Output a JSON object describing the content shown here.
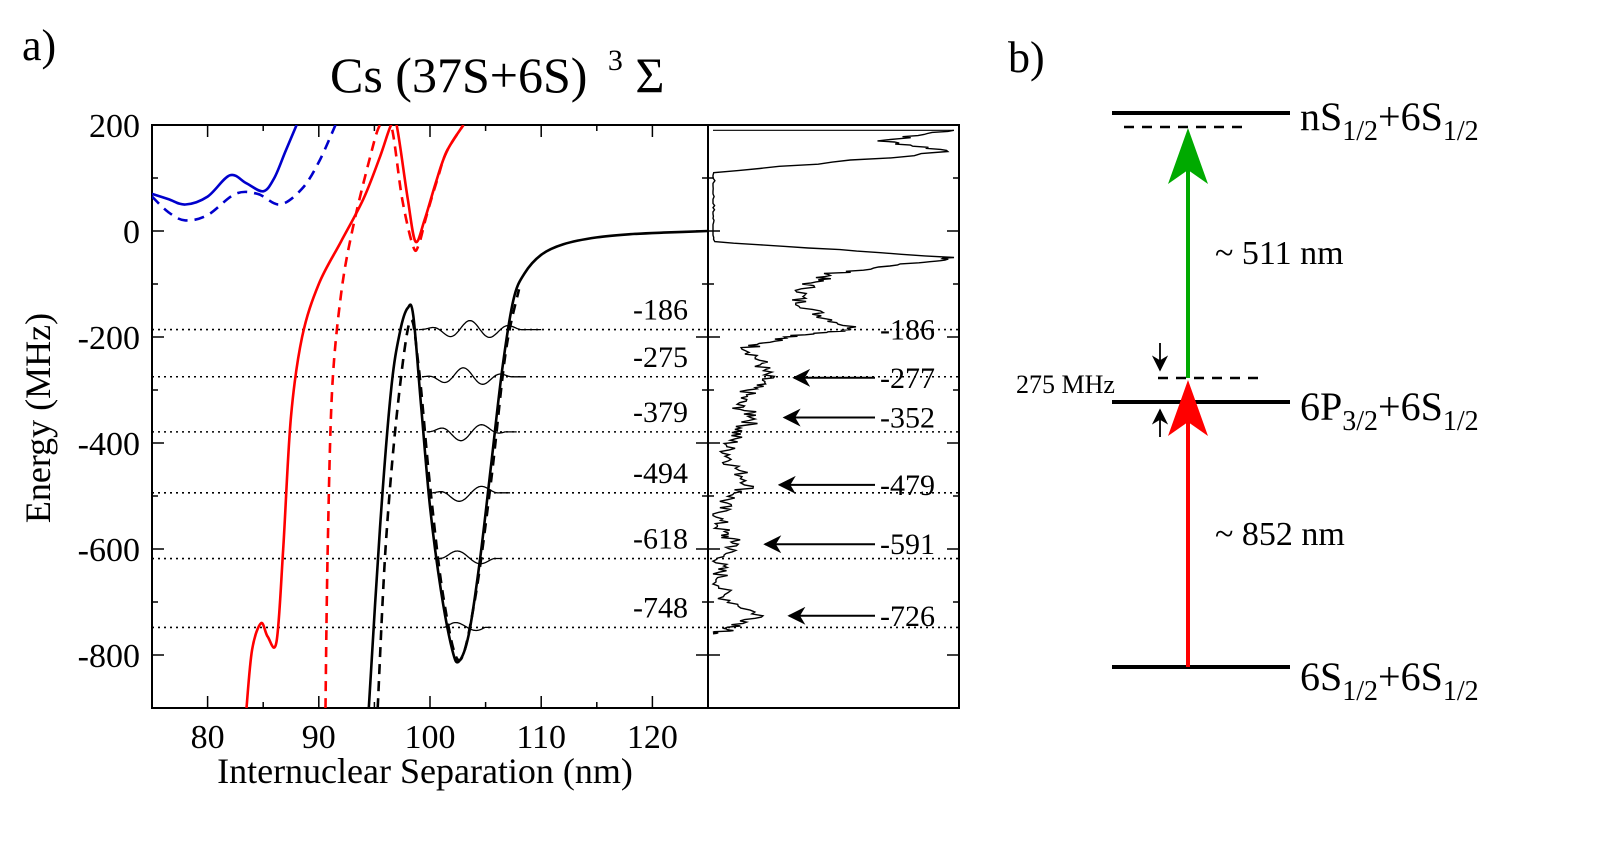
{
  "panel_a": {
    "label": "a)",
    "title": "Cs (37S+6S)",
    "title_sup": "3",
    "title_sym": "Σ",
    "xlabel": "Internuclear Separation (nm)",
    "ylabel": "Energy (MHz)"
  },
  "panel_b": {
    "label": "b)",
    "levels": [
      {
        "name": "nS",
        "sub1": "1/2",
        "plus": "+6S",
        "sub2": "1/2"
      },
      {
        "name": "6P",
        "sub1": "3/2",
        "plus": "+6S",
        "sub2": "1/2"
      },
      {
        "name": "6S",
        "sub1": "1/2",
        "plus": "+6S",
        "sub2": "1/2"
      }
    ],
    "upper_transition": "~ 511 nm",
    "lower_transition": "~ 852 nm",
    "detuning": "275 MHz",
    "colors": {
      "upper_arrow": "#00aa00",
      "lower_arrow": "#ff0000"
    }
  },
  "chart_data": {
    "type": "line",
    "title": "Cs (37S+6S) 3Σ",
    "xlabel": "Internuclear Separation (nm)",
    "ylabel": "Energy (MHz)",
    "xlim": [
      75,
      125
    ],
    "ylim": [
      -900,
      200
    ],
    "xticks": [
      80,
      90,
      100,
      110,
      120
    ],
    "yticks": [
      200,
      0,
      -200,
      -400,
      -600,
      -800
    ],
    "vib_levels_calculated": [
      -186,
      -275,
      -379,
      -494,
      -618,
      -748
    ],
    "vib_levels_measured": [
      -186,
      -277,
      -352,
      -479,
      -591,
      -726
    ],
    "level_labels_left": [
      "-186",
      "-275",
      "-379",
      "-494",
      "-618",
      "-748"
    ],
    "level_labels_right": [
      "-186",
      "-277",
      "-352",
      "-479",
      "-591",
      "-726"
    ],
    "series": [
      {
        "name": "blue solid",
        "color": "#0000cc",
        "dash": false,
        "x": [
          75,
          76.5,
          78,
          80,
          82,
          83.5,
          85,
          86,
          87,
          88
        ],
        "y": [
          70,
          60,
          50,
          65,
          105,
          90,
          75,
          100,
          150,
          200
        ]
      },
      {
        "name": "blue dashed",
        "color": "#0000cc",
        "dash": true,
        "x": [
          75,
          76.5,
          78,
          80,
          82.5,
          84.5,
          86.5,
          88.5,
          90,
          91.5
        ],
        "y": [
          65,
          35,
          20,
          30,
          70,
          70,
          50,
          80,
          130,
          200
        ]
      },
      {
        "name": "red solid",
        "color": "#ff0000",
        "dash": false,
        "x": [
          83.5,
          84,
          84.8,
          85.4,
          86.2,
          86.8,
          87.5,
          88.5,
          90,
          92,
          94,
          95.5,
          96.5,
          97,
          98,
          98.7,
          99.5,
          100.5,
          101.5,
          103
        ],
        "y": [
          -900,
          -790,
          -740,
          -765,
          -775,
          -600,
          -350,
          -200,
          -100,
          -20,
          60,
          140,
          200,
          200,
          60,
          -20,
          20,
          90,
          150,
          200
        ]
      },
      {
        "name": "red dashed",
        "color": "#ff0000",
        "dash": true,
        "x": [
          90.6,
          90.8,
          91.2,
          92,
          93,
          94.5,
          95.5,
          96.5,
          97.5,
          98.5,
          99,
          99.7,
          100.7,
          101.5,
          103
        ],
        "y": [
          -900,
          -600,
          -300,
          -120,
          0,
          130,
          200,
          200,
          60,
          -30,
          -25,
          30,
          100,
          150,
          200
        ]
      },
      {
        "name": "black solid",
        "color": "#000000",
        "dash": false,
        "x": [
          94.5,
          95.5,
          96.5,
          97.3,
          98,
          98.5,
          99.2,
          100,
          101,
          102,
          102.6,
          103.5,
          104.5,
          105.5,
          106.5,
          107.5,
          108.5,
          110,
          112,
          115,
          118,
          121,
          125
        ],
        "y": [
          -900,
          -560,
          -300,
          -190,
          -145,
          -160,
          -330,
          -520,
          -680,
          -790,
          -812,
          -760,
          -620,
          -440,
          -260,
          -130,
          -80,
          -45,
          -25,
          -12,
          -6,
          -3,
          0
        ]
      },
      {
        "name": "black dashed",
        "color": "#000000",
        "dash": true,
        "x": [
          95.3,
          96,
          97,
          98.2,
          99,
          100,
          101.2,
          102.6,
          104,
          105.5,
          106.8,
          108
        ],
        "y": [
          -900,
          -600,
          -350,
          -170,
          -260,
          -480,
          -690,
          -810,
          -700,
          -470,
          -230,
          -110
        ]
      }
    ],
    "wavefunctions": [
      {
        "energy": -186,
        "x_start": 99,
        "x_end": 110,
        "nodes": 5
      },
      {
        "energy": -275,
        "x_start": 99.3,
        "x_end": 108.5,
        "nodes": 4
      },
      {
        "energy": -379,
        "x_start": 99.7,
        "x_end": 107.8,
        "nodes": 3
      },
      {
        "energy": -494,
        "x_start": 100.2,
        "x_end": 107.2,
        "nodes": 2
      },
      {
        "energy": -618,
        "x_start": 100.7,
        "x_end": 106.5,
        "nodes": 1
      },
      {
        "energy": -748,
        "x_start": 101.2,
        "x_end": 105.5,
        "nodes": 0
      }
    ],
    "spectrum": {
      "description": "measured spectrum, signal vs energy",
      "energy": [
        190,
        170,
        150,
        110,
        60,
        20,
        -20,
        -50,
        -60,
        -80,
        -100,
        -130,
        -160,
        -186,
        -200,
        -220,
        -250,
        -277,
        -300,
        -330,
        -352,
        -380,
        -410,
        -440,
        -479,
        -510,
        -540,
        -570,
        -591,
        -620,
        -650,
        -690,
        -726,
        -750,
        -760
      ],
      "signal": [
        1.0,
        0.7,
        1.0,
        0.0,
        0.0,
        0.0,
        0.0,
        1.0,
        0.85,
        0.5,
        0.4,
        0.35,
        0.45,
        0.6,
        0.3,
        0.15,
        0.2,
        0.22,
        0.15,
        0.1,
        0.18,
        0.1,
        0.06,
        0.08,
        0.16,
        0.05,
        0.02,
        0.04,
        0.1,
        0.02,
        0.03,
        0.04,
        0.2,
        0.08,
        0.0
      ]
    }
  }
}
